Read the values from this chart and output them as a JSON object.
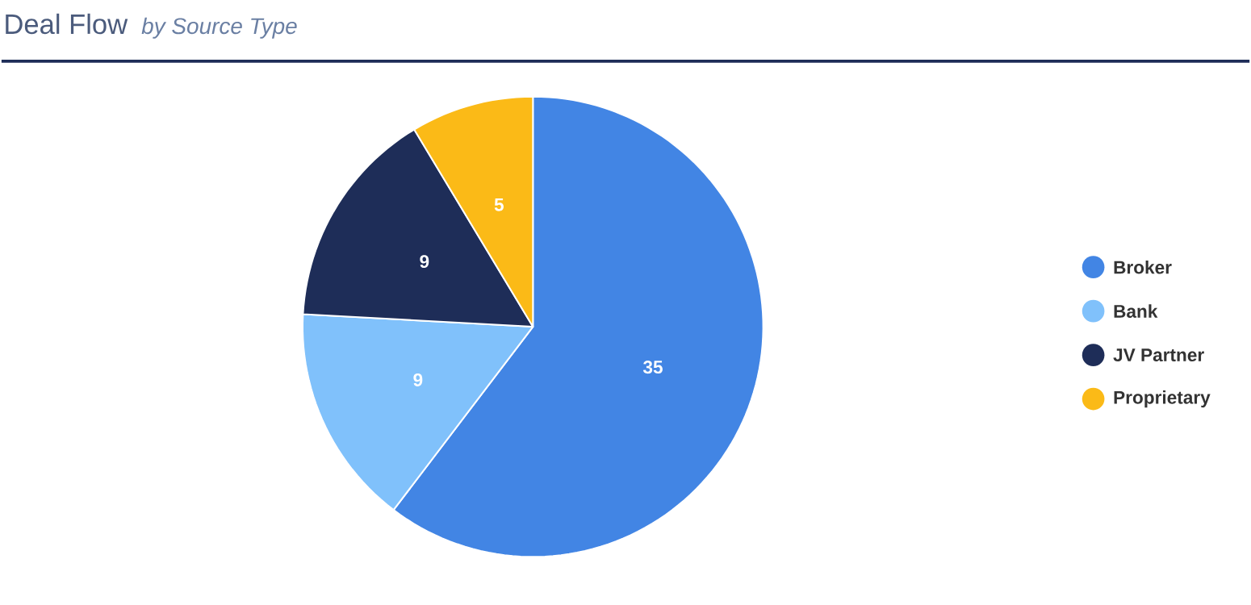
{
  "chart_data": {
    "type": "pie",
    "title": "Deal Flow",
    "subtitle": "by Source Type",
    "categories": [
      "Broker",
      "Bank",
      "JV Partner",
      "Proprietary"
    ],
    "values": [
      35,
      9,
      9,
      5
    ],
    "colors": [
      "#4285e4",
      "#80c1fb",
      "#1e2d58",
      "#fbba17"
    ],
    "data_labels": true,
    "legend": "right"
  }
}
